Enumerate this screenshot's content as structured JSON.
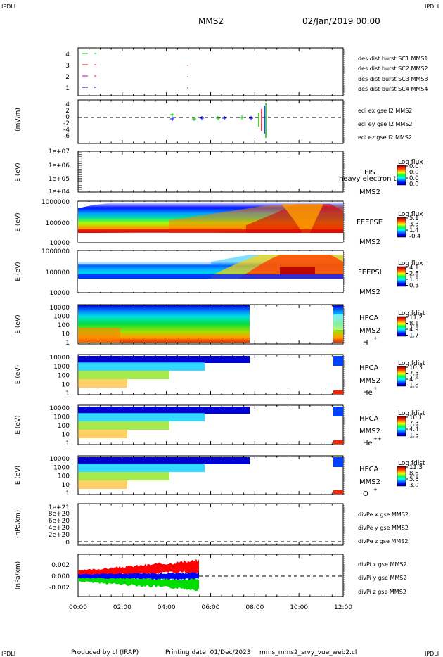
{
  "header": {
    "corner_label": "IPDLI",
    "title": "MMS2",
    "datetime": "02/Jan/2019 00:00"
  },
  "footer": {
    "produced_by": "Produced by cl (IRAP)",
    "printing_date": "Printing date: 01/Dec/2023",
    "filename": "mms_mms2_srvy_vue_web2.cl"
  },
  "colors": {
    "red": "#ff0000",
    "green": "#00cc00",
    "blue": "#0000ff",
    "magenta": "#cc00cc",
    "navy": "#0000aa"
  },
  "chart_data": {
    "type": "multi-panel time series / spectrogram",
    "x_axis": {
      "range": [
        "00:00",
        "12:00"
      ],
      "ticks": [
        "00:00",
        "02:00",
        "04:00",
        "06:00",
        "08:00",
        "10:00",
        "12:00"
      ]
    },
    "panels": [
      {
        "id": "burst",
        "type": "line",
        "yticks": [
          "4",
          "3",
          "2",
          "1"
        ],
        "legend": [
          {
            "label": "des dist burst SC1 MMS1",
            "color": "#0000aa"
          },
          {
            "label": "des dist burst SC2 MMS2",
            "color": "#cc00cc"
          },
          {
            "label": "des dist burst SC3 MMS3",
            "color": "#ff0000"
          },
          {
            "label": "des dist burst SC4 MMS4",
            "color": "#00cc00"
          }
        ]
      },
      {
        "id": "edi",
        "type": "line",
        "ylabel": "(mV/m)",
        "yticks": [
          "4",
          "2",
          "0",
          "-2",
          "-4",
          "-6"
        ],
        "legend": [
          {
            "label": "edi ex gse l2 MMS2",
            "color": "#ff0000"
          },
          {
            "label": "edi ey gse l2 MMS2",
            "color": "#00cc00"
          },
          {
            "label": "edi ez gse l2 MMS2",
            "color": "#0000ff"
          }
        ]
      },
      {
        "id": "eis",
        "type": "heatmap",
        "ylabel": "E (eV)",
        "yticks": [
          "1e+07",
          "1e+06",
          "1e+05",
          "1e+04"
        ],
        "instrument": "EIS",
        "instrument_note": "heavy electron to",
        "probe": "MMS2",
        "cbar_title": "Log flux",
        "cbar_ticks": [
          "0.0",
          "0.0",
          "0.0",
          "0.0"
        ]
      },
      {
        "id": "feepse",
        "type": "heatmap",
        "ylabel": "E (eV)",
        "yticks": [
          "1000000",
          "100000",
          "10000"
        ],
        "instrument": "FEEPSE",
        "probe": "MMS2",
        "cbar_title": "Log flux",
        "cbar_ticks": [
          "5.1",
          "3.3",
          "1.4",
          "-0.4"
        ]
      },
      {
        "id": "feepsi",
        "type": "heatmap",
        "ylabel": "E (eV)",
        "yticks": [
          "1000000",
          "100000",
          "10000"
        ],
        "instrument": "FEEPSI",
        "probe": "MMS2",
        "cbar_title": "Log flux",
        "cbar_ticks": [
          "4.1",
          "2.8",
          "1.5",
          "0.3"
        ]
      },
      {
        "id": "hpca_h",
        "type": "heatmap",
        "ylabel": "E (eV)",
        "yticks": [
          "10000",
          "1000",
          "100",
          "10",
          "1"
        ],
        "instrument": "HPCA",
        "probe": "MMS2",
        "species": "H",
        "charge": "+",
        "cbar_title": "Log fdist",
        "cbar_ticks": [
          "11.2",
          "8.1",
          "4.9",
          "1.7"
        ]
      },
      {
        "id": "hpca_he",
        "type": "heatmap",
        "ylabel": "E (eV)",
        "yticks": [
          "10000",
          "1000",
          "100",
          "10",
          "1"
        ],
        "instrument": "HPCA",
        "probe": "MMS2",
        "species": "He",
        "charge": "+",
        "cbar_title": "Log fdist",
        "cbar_ticks": [
          "10.3",
          "7.5",
          "4.6",
          "1.8"
        ]
      },
      {
        "id": "hpca_hepp",
        "type": "heatmap",
        "ylabel": "E (eV)",
        "yticks": [
          "10000",
          "1000",
          "100",
          "10",
          "1"
        ],
        "instrument": "HPCA",
        "probe": "MMS2",
        "species": "He",
        "charge": "++",
        "cbar_title": "Log fdist",
        "cbar_ticks": [
          "10.1",
          "7.3",
          "4.4",
          "1.5"
        ]
      },
      {
        "id": "hpca_o",
        "type": "heatmap",
        "ylabel": "E (eV)",
        "yticks": [
          "10000",
          "1000",
          "100",
          "10",
          "1"
        ],
        "instrument": "HPCA",
        "probe": "MMS2",
        "species": "O",
        "charge": "+",
        "cbar_title": "Log fdist",
        "cbar_ticks": [
          "11.3",
          "8.6",
          "5.8",
          "3.0"
        ]
      },
      {
        "id": "divpe",
        "type": "line",
        "ylabel": "(nPa/km)",
        "yticks": [
          "1e+21",
          "8e+20",
          "6e+20",
          "4e+20",
          "2e+20",
          "0"
        ],
        "legend": [
          {
            "label": "divPe x gse MMS2",
            "color": "#ff0000"
          },
          {
            "label": "divPe y gse MMS2",
            "color": "#00cc00"
          },
          {
            "label": "divPe z gse MMS2",
            "color": "#0000ff"
          }
        ]
      },
      {
        "id": "divpi",
        "type": "line",
        "ylabel": "(nPa/km)",
        "yticks": [
          "0.002",
          "0.000",
          "-0.002"
        ],
        "legend": [
          {
            "label": "divPi x gse MMS2",
            "color": "#ff0000"
          },
          {
            "label": "divPi y gse MMS2",
            "color": "#00cc00"
          },
          {
            "label": "divPi z gse MMS2",
            "color": "#0000ff"
          }
        ]
      }
    ]
  }
}
